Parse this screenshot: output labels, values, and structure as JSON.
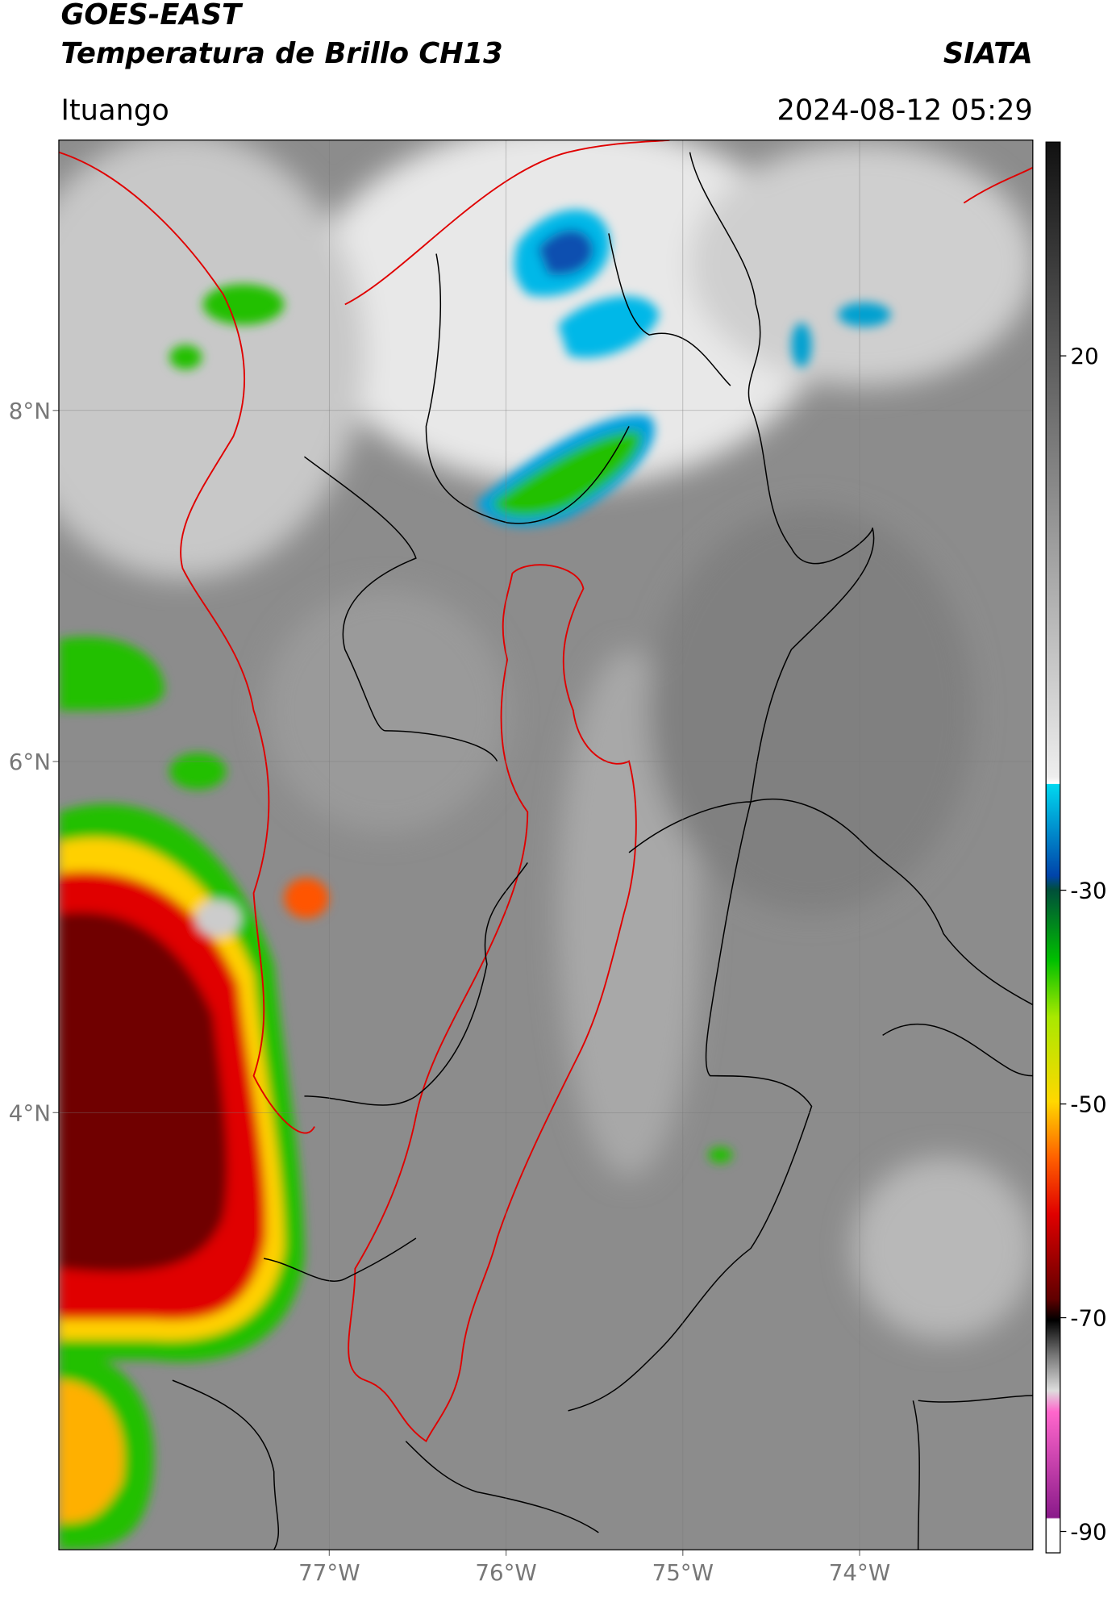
{
  "header": {
    "title": "GOES-EAST",
    "subtitle": "Temperatura de Brillo CH13",
    "source": "SIATA",
    "location": "Ituango",
    "timestamp": "2024-08-12 05:29"
  },
  "map": {
    "type": "map",
    "xlim": [
      -78.53,
      -73.02
    ],
    "ylim": [
      1.51,
      9.54
    ],
    "xticks": [
      {
        "value": -77,
        "label": "77°W"
      },
      {
        "value": -76,
        "label": "76°W"
      },
      {
        "value": -75,
        "label": "75°W"
      },
      {
        "value": -74,
        "label": "74°W"
      }
    ],
    "yticks": [
      {
        "value": 8,
        "label": "8°N"
      },
      {
        "value": 6,
        "label": "6°N"
      },
      {
        "value": 4,
        "label": "4°N"
      }
    ],
    "grid": true
  },
  "colorbar": {
    "lim": [
      -92,
      40
    ],
    "ticks": [
      20,
      -30,
      -50,
      -70,
      -90
    ]
  }
}
